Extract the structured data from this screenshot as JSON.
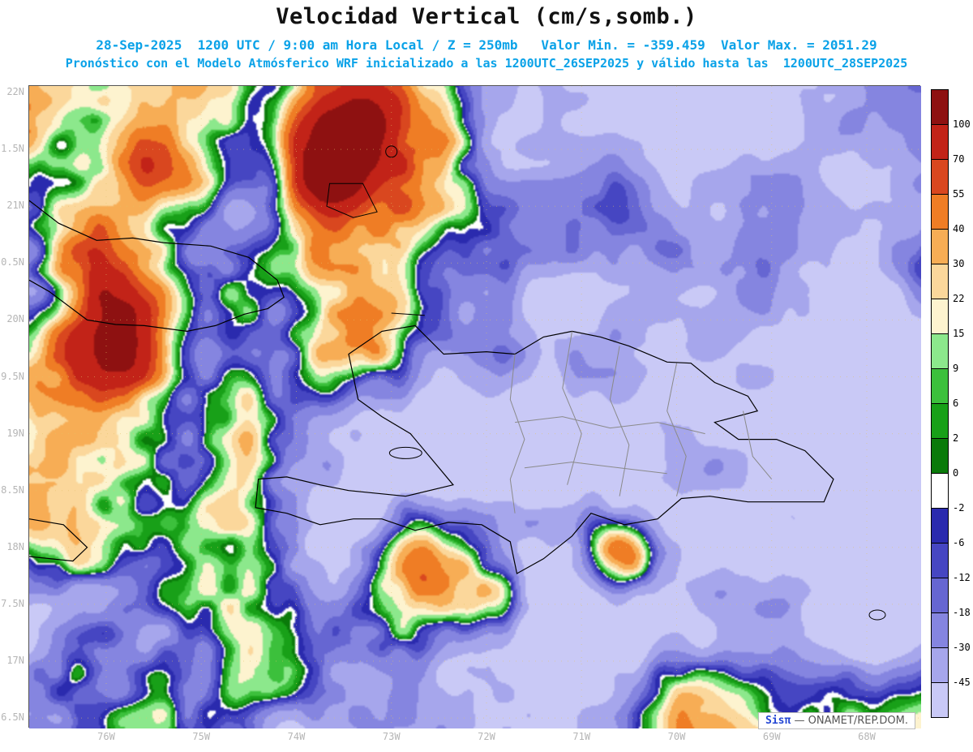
{
  "header": {
    "title": "Velocidad Vertical (cm/s,somb.)",
    "subtitle_line1": "28-Sep-2025  1200 UTC / 9:00 am Hora Local / Z = 250mb   Valor Min. = -359.459  Valor Max. = 2051.29",
    "subtitle_line2": "Pronóstico con el Modelo Atmósferico WRF inicializado a las 1200UTC_26SEP2025 y válido hasta las  1200UTC_28SEP2025",
    "accent_color": "#0aa2e8"
  },
  "chart_data": {
    "type": "heatmap",
    "variable": "Velocidad Vertical (cm/s, sombreado)",
    "model": "WRF",
    "level": "Z = 250mb",
    "valid_date": "28-Sep-2025",
    "valid_time": "1200 UTC / 9:00 am Hora Local",
    "init_time": "1200UTC_26SEP2025",
    "end_time": "1200UTC_28SEP2025",
    "value_min": -359.459,
    "value_max": 2051.29,
    "x_ticks": [
      "76W",
      "75W",
      "74W",
      "73W",
      "72W",
      "71W",
      "70W",
      "69W",
      "68W"
    ],
    "y_ticks": [
      "22N",
      "1.5N",
      "21N",
      "0.5N",
      "20N",
      "9.5N",
      "19N",
      "8.5N",
      "18N",
      "7.5N",
      "17N",
      "6.5N"
    ],
    "colorbar_labels_top_to_bottom": [
      "100",
      "70",
      "55",
      "40",
      "30",
      "22",
      "15",
      "9",
      "6",
      "2",
      "0",
      "-2",
      "-6",
      "-12",
      "-18",
      "-30",
      "-45"
    ],
    "levels_ascending": [
      -45,
      -30,
      -18,
      -12,
      -6,
      -2,
      0,
      2,
      6,
      9,
      15,
      22,
      30,
      40,
      55,
      70,
      100
    ],
    "palette_ascending": [
      "#c9c9f6",
      "#a6a6ec",
      "#8585e0",
      "#6666d2",
      "#4646c2",
      "#2a2aae",
      "#ffffff",
      "#0a7a0a",
      "#18a018",
      "#3cc03c",
      "#8ce88c",
      "#fdf3cf",
      "#fbd79b",
      "#f7ad55",
      "#ef7d25",
      "#d9471f",
      "#c22318",
      "#8e1111"
    ],
    "axis_label_color": "#b5b5b5",
    "legend_position": "right"
  },
  "branding": {
    "name": "Sisπ",
    "suffix": " — ONAMET/REP.DOM."
  }
}
